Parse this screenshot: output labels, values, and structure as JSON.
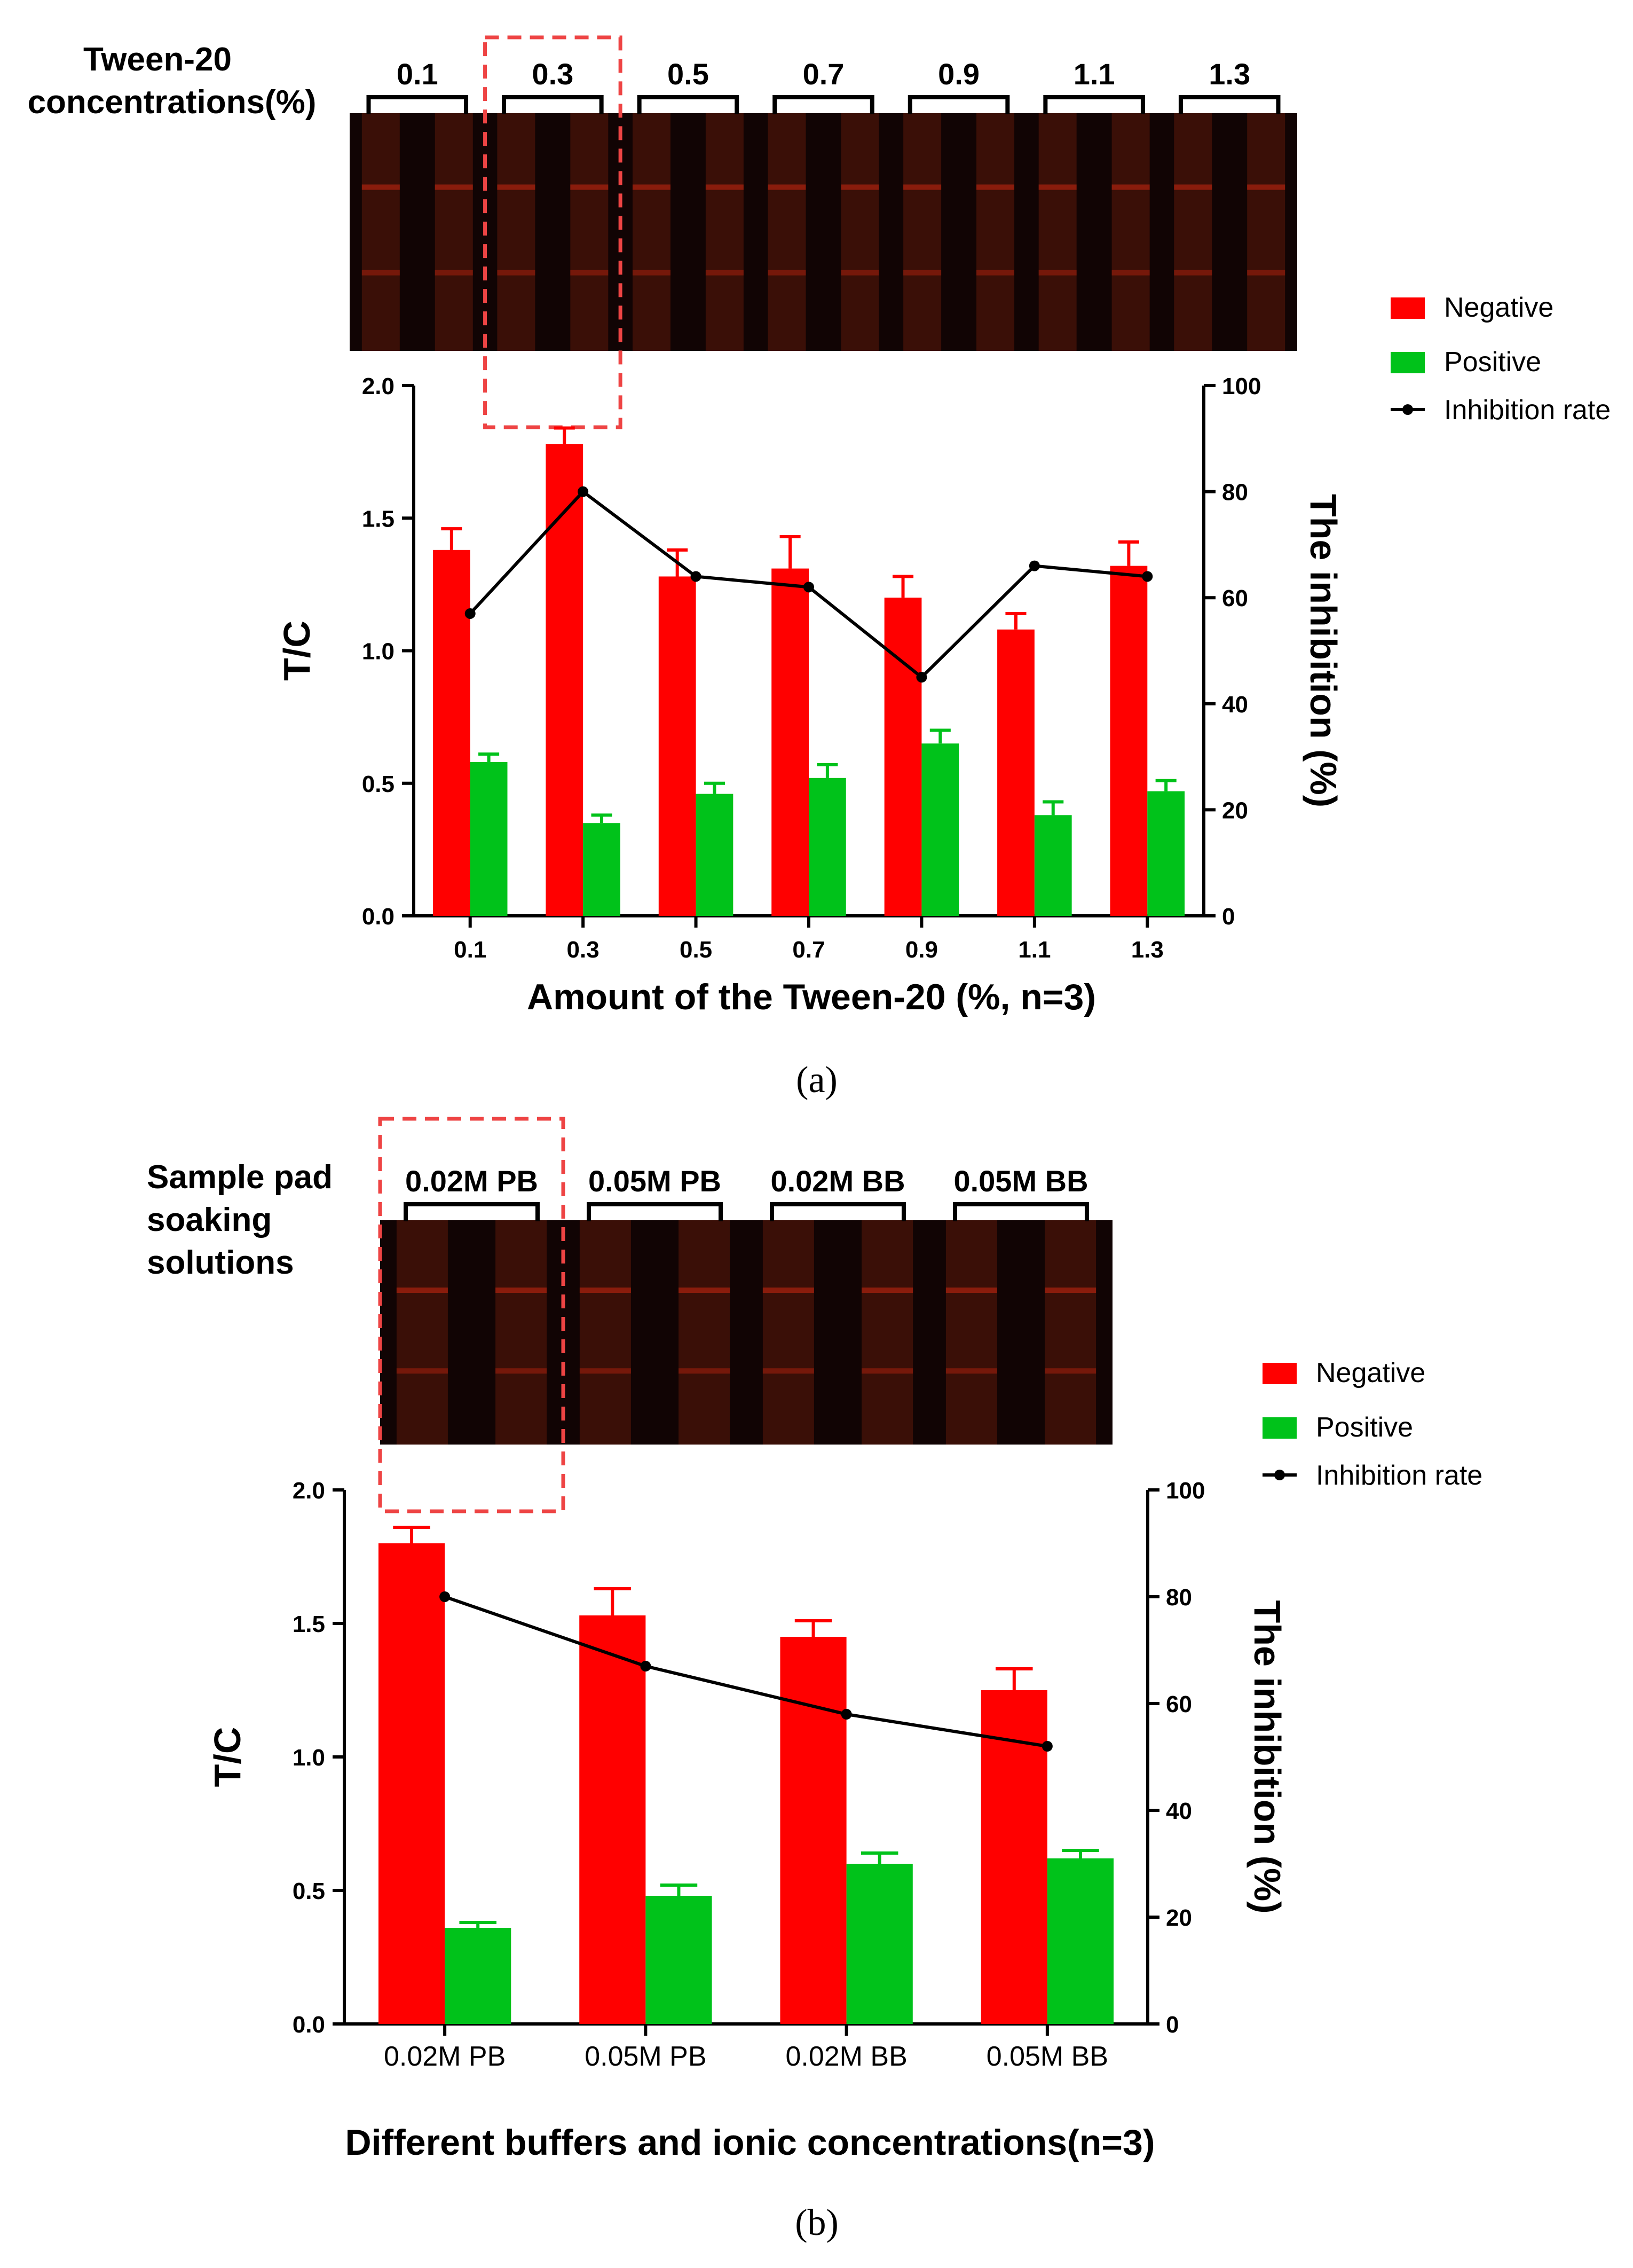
{
  "colors": {
    "negative": "#ff0000",
    "positive": "#00c21a",
    "inhibition": "#000000",
    "highlight": "#ee4444",
    "strip_bg": "#110404",
    "strip_lane": "#3a0f07",
    "strip_line": "#8a1c0c"
  },
  "panel_a": {
    "label": "(a)",
    "strip_label": [
      "Tween-20",
      "concentrations(%)"
    ],
    "strip_groups": [
      "0.1",
      "0.3",
      "0.5",
      "0.7",
      "0.9",
      "1.1",
      "1.3"
    ],
    "highlight_group": 1
  },
  "panel_b": {
    "label": "(b)",
    "strip_label": [
      "Sample pad",
      "soaking",
      "solutions"
    ],
    "strip_groups": [
      "0.02M PB",
      "0.05M PB",
      "0.02M BB",
      "0.05M BB"
    ],
    "highlight_group": 0
  },
  "chart_data": [
    {
      "type": "bar",
      "xlabel": "Amount of the Tween-20 (%, n=3)",
      "ylabel": "T/C",
      "y2label": "The inhibition (%)",
      "categories": [
        "0.1",
        "0.3",
        "0.5",
        "0.7",
        "0.9",
        "1.1",
        "1.3"
      ],
      "ylim": [
        0,
        2.0
      ],
      "yticks": [
        "0.0",
        "0.5",
        "1.0",
        "1.5",
        "2.0"
      ],
      "y2lim": [
        0,
        100
      ],
      "y2ticks": [
        "0",
        "20",
        "40",
        "60",
        "80",
        "100"
      ],
      "series": [
        {
          "name": "Negative",
          "values": [
            1.38,
            1.78,
            1.28,
            1.31,
            1.2,
            1.08,
            1.32
          ],
          "errors": [
            0.08,
            0.06,
            0.1,
            0.12,
            0.08,
            0.06,
            0.09
          ]
        },
        {
          "name": "Positive",
          "values": [
            0.58,
            0.35,
            0.46,
            0.52,
            0.65,
            0.38,
            0.47
          ],
          "errors": [
            0.03,
            0.03,
            0.04,
            0.05,
            0.05,
            0.05,
            0.04
          ]
        },
        {
          "name": "Inhibition rate",
          "axis": "y2",
          "values": [
            57,
            80,
            64,
            62,
            45,
            66,
            64
          ]
        }
      ],
      "legend": [
        "Negative",
        "Positive",
        "Inhibition rate"
      ]
    },
    {
      "type": "bar",
      "xlabel": "Different buffers and ionic concentrations(n=3)",
      "ylabel": "T/C",
      "y2label": "The inhibition (%)",
      "categories": [
        "0.02M PB",
        "0.05M PB",
        "0.02M BB",
        "0.05M BB"
      ],
      "ylim": [
        0,
        2.0
      ],
      "yticks": [
        "0.0",
        "0.5",
        "1.0",
        "1.5",
        "2.0"
      ],
      "y2lim": [
        0,
        100
      ],
      "y2ticks": [
        "0",
        "20",
        "40",
        "60",
        "80",
        "100"
      ],
      "series": [
        {
          "name": "Negative",
          "values": [
            1.8,
            1.53,
            1.45,
            1.25
          ],
          "errors": [
            0.06,
            0.1,
            0.06,
            0.08
          ]
        },
        {
          "name": "Positive",
          "values": [
            0.36,
            0.48,
            0.6,
            0.62
          ],
          "errors": [
            0.02,
            0.04,
            0.04,
            0.03
          ]
        },
        {
          "name": "Inhibition rate",
          "axis": "y2",
          "values": [
            80,
            67,
            58,
            52
          ]
        }
      ],
      "legend": [
        "Negative",
        "Positive",
        "Inhibition rate"
      ]
    }
  ]
}
